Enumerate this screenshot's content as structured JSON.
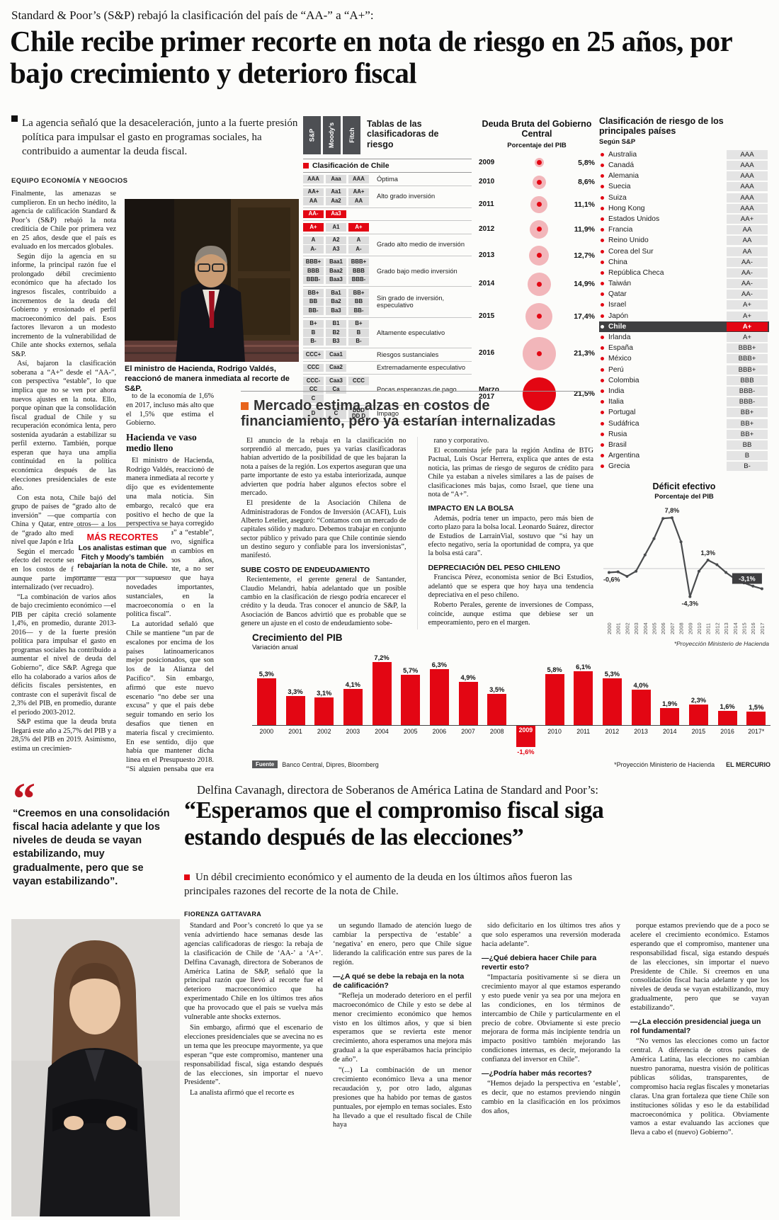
{
  "article": {
    "kicker": "Standard & Poor’s (S&P) rebajó la clasificación del país de “AA-” a “A+”:",
    "headline": "Chile recibe primer recorte en nota de riesgo en 25 años, por bajo crecimiento y deterioro fiscal",
    "lead": "La agencia señaló que la desaceleración, junto a la fuerte presión política para impulsar el gasto en programas sociales, ha contribuido a aumentar la deuda fiscal.",
    "byline": "EQUIPO ECONOMÍA Y NEGOCIOS",
    "col1": [
      "Finalmente, las amenazas se cumplieron. En un hecho inédito, la agencia de calificación Standard & Poor’s (S&P) rebajó la nota crediticia de Chile por primera vez en 25 años, desde que el país es evaluado en los mercados globales.",
      "Según dijo la agencia en su informe, la principal razón fue el prolongado débil crecimiento económico que ha afectado los ingresos fiscales, contribuido a incrementos de la deuda del Gobierno y erosionado el perfil macroeconómico del país. Esos factores llevaron a un modesto incremento de la vulnerabilidad de Chile ante shocks externos, señala S&P.",
      "Así, bajaron la clasificación soberana a “A+” desde el “AA-”, con perspectiva “estable”, lo que implica que no se ven por ahora nuevos ajustes en la nota. Ello, porque opinan que la consolidación fiscal gradual de Chile y su recuperación económica lenta, pero sostenida ayudarán a estabilizar su perfil externo. También, porque esperan que haya una amplia continuidad en la política económica después de las elecciones presidenciales de este año.",
      "Con esta nota, Chile bajó del grupo de países de “grado alto de inversión” —que compartía con China y Qatar, entre otros— a los de “grado alto medio”, al mismo nivel que Japón e Irlanda.",
      "Según el mercado, el principal efecto del recorte será un aumento en los costos de financiamiento, aunque parte importante está internalizado (ver recuadro).",
      "“La combinación de varios años de bajo crecimiento económico —el PIB per cápita creció solamente 1,4%, en promedio, durante 2013-2016— y de la fuerte presión política para impulsar el gasto en programas sociales ha contribuido a aumentar el nivel de deuda del Gobierno”, dice S&P. Agrega que ello ha colaborado a varios años de déficits fiscales persistentes, en contraste con el superávit fiscal de 2,3% del PIB, en promedio, durante el período 2003-2012.",
      "S&P estima que la deuda bruta llegará este año a 25,7% del PIB y a 28,5% del PIB en 2019. Asimismo, estima un crecimien-"
    ],
    "photo_caption": "El ministro de Hacienda, Rodrigo Valdés, reaccionó de manera inmediata al recorte de S&P.",
    "col2": [
      {
        "t": "p",
        "x": "to de la economía de 1,6% en 2017, incluso más alto que el 1,5% que estima el Gobierno."
      },
      {
        "t": "h",
        "x": "Hacienda ve vaso medio lleno"
      },
      {
        "t": "p",
        "x": "El ministro de Hacienda, Rodrigo Valdés, reaccionó de manera inmediata al recorte y dijo que es evidentemente una mala noticia. Sin embargo, recalcó que era positivo el hecho de que la perspectiva se haya corregido desde “negativa” a “estable”, lo que, sostuvo, significa “que no esperan cambios en los próximos años, aproximadamente, a no ser por supuesto que haya novedades importantes, sustanciales, en la macroeconomía o en la política fiscal”."
      },
      {
        "t": "p",
        "x": "La autoridad señaló que Chile se mantiene “un par de escalones por encima de los países latinoamericanos mejor posicionados, que son los de la Alianza del Pacífico”. Sin embargo, afirmó que este nuevo escenario “no debe ser una excusa” y que el país debe seguir tomando en serio los desafíos que tienen en materia fiscal y crecimiento. En ese sentido, dijo que había que mantener dicha línea en el Presupuesto 2018. “Si alguien pensaba que era tiempo de salirnos un poquito, de hacer un poco más de gasto, la verdad es que no existe ese espacio”."
      }
    ],
    "box": {
      "title": "MÁS RECORTES",
      "text": "Los analistas estiman que Fitch y Moody’s también rebajarían la nota de Chile."
    }
  },
  "ratings": {
    "title": "Tablas de las clasificadoras de riesgo",
    "legend": "Clasificación de Chile",
    "agencies": [
      "S&P",
      "Moody’s",
      "Fitch"
    ],
    "highlights": [
      [
        "AA-",
        0
      ],
      [
        "Aa3",
        1
      ],
      [
        "A+",
        0
      ],
      [
        "A+",
        2
      ]
    ],
    "groups": [
      {
        "rows": [
          [
            "AAA",
            "Aaa",
            "AAA"
          ]
        ],
        "desc": "Óptima"
      },
      {
        "rows": [
          [
            "AA+",
            "Aa1",
            "AA+"
          ],
          [
            "AA",
            "Aa2",
            "AA"
          ]
        ],
        "desc": "Alto grado inversión"
      },
      {
        "rows": [
          [
            "AA-",
            "Aa3",
            ""
          ]
        ],
        "desc": ""
      },
      {
        "rows": [
          [
            "A+",
            "A1",
            "A+"
          ]
        ],
        "desc": ""
      },
      {
        "rows": [
          [
            "A",
            "A2",
            "A"
          ],
          [
            "A-",
            "A3",
            "A-"
          ]
        ],
        "desc": "Grado alto medio de inversión"
      },
      {
        "rows": [
          [
            "BBB+",
            "Baa1",
            "BBB+"
          ],
          [
            "BBB",
            "Baa2",
            "BBB"
          ],
          [
            "BBB-",
            "Baa3",
            "BBB-"
          ]
        ],
        "desc": "Grado bajo medio inversión"
      },
      {
        "rows": [
          [
            "BB+",
            "Ba1",
            "BB+"
          ],
          [
            "BB",
            "Ba2",
            "BB"
          ],
          [
            "BB-",
            "Ba3",
            "BB-"
          ]
        ],
        "desc": "Sin grado de inversión, especulativo"
      },
      {
        "rows": [
          [
            "B+",
            "B1",
            "B+"
          ],
          [
            "B",
            "B2",
            "B"
          ],
          [
            "B-",
            "B3",
            "B-"
          ]
        ],
        "desc": "Altamente especulativo"
      },
      {
        "rows": [
          [
            "CCC+",
            "Caa1",
            ""
          ]
        ],
        "desc": "Riesgos sustanciales"
      },
      {
        "rows": [
          [
            "CCC",
            "Caa2",
            ""
          ]
        ],
        "desc": "Extremadamente especulativo"
      },
      {
        "rows": [
          [
            "CCC-",
            "Caa3",
            "CCC"
          ],
          [
            "CC",
            "Ca",
            ""
          ],
          [
            "C",
            "",
            ""
          ]
        ],
        "desc": "Pocas esperanzas de pago"
      },
      {
        "rows": [
          [
            "D",
            "C",
            "DDD DD D"
          ]
        ],
        "desc": "Impago"
      }
    ]
  },
  "countries": {
    "title": "Clasificación de riesgo de los principales países",
    "subtitle": "Según S&P",
    "items": [
      {
        "name": "Australia",
        "rating": "AAA"
      },
      {
        "name": "Canadá",
        "rating": "AAA"
      },
      {
        "name": "Alemania",
        "rating": "AAA"
      },
      {
        "name": "Suecia",
        "rating": "AAA"
      },
      {
        "name": "Suiza",
        "rating": "AAA"
      },
      {
        "name": "Hong Kong",
        "rating": "AAA"
      },
      {
        "name": "Estados Unidos",
        "rating": "AA+"
      },
      {
        "name": "Francia",
        "rating": "AA"
      },
      {
        "name": "Reino Unido",
        "rating": "AA"
      },
      {
        "name": "Corea del Sur",
        "rating": "AA"
      },
      {
        "name": "China",
        "rating": "AA-"
      },
      {
        "name": "República Checa",
        "rating": "AA-"
      },
      {
        "name": "Taiwán",
        "rating": "AA-"
      },
      {
        "name": "Qatar",
        "rating": "AA-"
      },
      {
        "name": "Israel",
        "rating": "A+"
      },
      {
        "name": "Japón",
        "rating": "A+"
      },
      {
        "name": "Chile",
        "rating": "A+",
        "hl": true
      },
      {
        "name": "Irlanda",
        "rating": "A+"
      },
      {
        "name": "España",
        "rating": "BBB+"
      },
      {
        "name": "México",
        "rating": "BBB+"
      },
      {
        "name": "Perú",
        "rating": "BBB+"
      },
      {
        "name": "Colombia",
        "rating": "BBB"
      },
      {
        "name": "India",
        "rating": "BBB-"
      },
      {
        "name": "Italia",
        "rating": "BBB-"
      },
      {
        "name": "Portugal",
        "rating": "BB+"
      },
      {
        "name": "Sudáfrica",
        "rating": "BB+"
      },
      {
        "name": "Rusia",
        "rating": "BB+"
      },
      {
        "name": "Brasil",
        "rating": "BB"
      },
      {
        "name": "Argentina",
        "rating": "B"
      },
      {
        "name": "Grecia",
        "rating": "B-"
      }
    ]
  },
  "market": {
    "title": "Mercado estima alzas en costos de financiamiento, pero ya estarían internalizadas",
    "col_a": [
      {
        "t": "p",
        "x": "El anuncio de la rebaja en la clasificación no sorprendió al mercado, pues ya varias clasificadoras habían advertido de la posibilidad de que les bajaran la nota a países de la región. Los expertos aseguran que una parte importante de esto ya estaba interiorizada, aunque advierten que podría haber algunos efectos sobre el mercado."
      },
      {
        "t": "p",
        "x": "El presidente de la Asociación Chilena de Administradoras de Fondos de Inversión (ACAFI), Luis Alberto Letelier, aseguró: “Contamos con un mercado de capitales sólido y maduro. Debemos trabajar en conjunto sector público y privado para que Chile continúe siendo un destino seguro y confiable para los inversionistas”, manifestó."
      },
      {
        "t": "h",
        "x": "SUBE COSTO DE ENDEUDAMIENTO"
      },
      {
        "t": "p",
        "x": "Recientemente, el gerente general de Santander, Claudio Melandri, había adelantado que un posible cambio en la clasificación de riesgo podría encarecer el crédito y la deuda. Tras conocer el anuncio de S&P, la Asociación de Bancos advirtió que es probable que se genere un ajuste en el costo de endeudamiento sobe-"
      }
    ],
    "col_b": [
      {
        "t": "p",
        "x": "rano y corporativo."
      },
      {
        "t": "p",
        "x": "El economista jefe para la región Andina de BTG Pactual, Luis Oscar Herrera, explica que antes de esta noticia, las primas de riesgo de seguros de crédito para Chile ya estaban a niveles similares a las de países de clasificaciones más bajas, como Israel, que tiene una nota de “A+”."
      },
      {
        "t": "h",
        "x": "IMPACTO EN LA BOLSA"
      },
      {
        "t": "p",
        "x": "Además, podría tener un impacto, pero más bien de corto plazo para la bolsa local. Leonardo Suárez, director de Estudios de LarrainVial, sostuvo que “si hay un efecto negativo, sería la oportunidad de compra, ya que la bolsa está cara”."
      },
      {
        "t": "h",
        "x": "DEPRECIACIÓN DEL PESO CHILENO"
      },
      {
        "t": "p",
        "x": "Francisca Pérez, economista senior de Bci Estudios, adelantó que se espera que hoy haya una tendencia depreciativa en el peso chileno."
      },
      {
        "t": "p",
        "x": "Roberto Perales, gerente de inversiones de Compass, coincide, aunque estima que debiese ser un empeoramiento, pero en el margen."
      }
    ]
  },
  "interview": {
    "kicker": "Delfina Cavanagh, directora de Soberanos de América Latina de Standard and Poor’s:",
    "headline": "“Esperamos que el compromiso fiscal siga estando después de las elecciones”",
    "dek": "Un débil crecimiento económico y el aumento de la deuda en los últimos años fueron las principales razones del recorte de la nota de Chile.",
    "byline": "FIORENZA GATTAVARA",
    "quote_mark": "“",
    "quote": "“Creemos en una consolidación fiscal hacia adelante y que los niveles de deuda se vayan estabilizando, muy gradualmente, pero que se vayan estabilizando”.",
    "cols": [
      [
        {
          "t": "p",
          "x": "Standard and Poor’s concretó lo que ya se venía advirtiendo hace semanas desde las agencias calificadoras de riesgo: la rebaja de la clasificación de Chile de ‘AA-’ a ‘A+’. Delfina Cavanagh, directora de Soberanos de América Latina de S&P, señaló que la principal razón que llevó al recorte fue el deterioro macroeconómico que ha experimentado Chile en los últimos tres años que ha provocado que el país se vuelva más vulnerable ante shocks externos."
        },
        {
          "t": "p",
          "x": "Sin embargo, afirmó que el escenario de elecciones presidenciales que se avecina no es un tema que les preocupe mayormente, ya que esperan “que este compromiso, mantener una responsabilidad fiscal, siga estando después de las elecciones, sin importar el nuevo Presidente”."
        },
        {
          "t": "p",
          "x": "La analista afirmó que el recorte es"
        }
      ],
      [
        {
          "t": "p",
          "x": "un segundo llamado de atención luego de cambiar la perspectiva de ‘estable’ a ‘negativa’ en enero, pero que Chile sigue liderando la calificación entre sus pares de la región."
        },
        {
          "t": "q",
          "x": "—¿A qué se debe la rebaja en la nota de calificación?"
        },
        {
          "t": "p",
          "x": "“Refleja un moderado deterioro en el perfil macroeconómico de Chile y esto se debe al menor crecimiento económico que hemos visto en los últimos años, y que si bien esperamos que se revierta este menor crecimiento, ahora esperamos una mejora más gradual a la que esperábamos hacia principio de año”."
        },
        {
          "t": "p",
          "x": "“(...) La combinación de un menor crecimiento económico lleva a una menor recaudación y, por otro lado, algunas presiones que ha habido por temas de gastos puntuales, por ejemplo en temas sociales. Esto ha llevado a que el resultado fiscal de Chile haya"
        }
      ],
      [
        {
          "t": "p",
          "x": "sido deficitario en los últimos tres años y que solo esperamos una reversión moderada hacia adelante”."
        },
        {
          "t": "q",
          "x": "—¿Qué debiera hacer Chile para revertir esto?"
        },
        {
          "t": "p",
          "x": "“Impactaría positivamente si se diera un crecimiento mayor al que estamos esperando y esto puede venir ya sea por una mejora en las condiciones, en los términos de intercambio de Chile y particularmente en el precio de cobre. Obviamente si este precio mejorara de forma más incipiente tendría un impacto positivo también mejorando las condiciones internas, es decir, mejorando la confianza del inversor en Chile”."
        },
        {
          "t": "q",
          "x": "—¿Podría haber más recortes?"
        },
        {
          "t": "p",
          "x": "“Hemos dejado la perspectiva en ‘estable’, es decir, que no estamos previendo ningún cambio en la clasificación en los próximos dos años,"
        }
      ],
      [
        {
          "t": "p",
          "x": "porque estamos previendo que de a poco se acelere el crecimiento económico. Estamos esperando que el compromiso, mantener una responsabilidad fiscal, siga estando después de las elecciones, sin importar el nuevo Presidente de Chile. Sí creemos en una consolidación fiscal hacia adelante y que los niveles de deuda se vayan estabilizando, muy gradualmente, pero que se vayan estabilizando”."
        },
        {
          "t": "q",
          "x": "—¿La elección presidencial juega un rol fundamental?"
        },
        {
          "t": "p",
          "x": "“No vemos las elecciones como un factor central. A diferencia de otros países de América Latina, las elecciones no cambian nuestro panorama, nuestra visión de políticas públicas sólidas, transparentes, de compromiso hacia reglas fiscales y monetarias claras. Una gran fortaleza que tiene Chile son instituciones sólidas y eso le da estabilidad macroeconómica y política. Obviamente vamos a estar evaluando las acciones que lleva a cabo el (nuevo) Gobierno”."
        }
      ]
    ]
  },
  "chart_data": [
    {
      "type": "bubble",
      "title": "Deuda Bruta del Gobierno Central",
      "subtitle": "Porcentaje del PIB",
      "categories": [
        "2009",
        "2010",
        "2011",
        "2012",
        "2013",
        "2014",
        "2015",
        "2016",
        "Marzo 2017"
      ],
      "values": [
        5.8,
        8.6,
        11.1,
        11.9,
        12.7,
        14.9,
        17.4,
        21.3,
        21.5
      ],
      "labels": [
        "5,8%",
        "8,6%",
        "11,1%",
        "11,9%",
        "12,7%",
        "14,9%",
        "17,4%",
        "21,3%",
        "21,5%"
      ]
    },
    {
      "type": "line",
      "title": "Déficit efectivo",
      "subtitle": "Porcentaje del PIB",
      "x": [
        "2000",
        "2001",
        "2002",
        "2003",
        "2004",
        "2005",
        "2006",
        "2007",
        "2008",
        "2009",
        "2010",
        "2011",
        "2012",
        "2013",
        "2014",
        "2015",
        "2016",
        "2017"
      ],
      "values": [
        -0.6,
        -0.5,
        -1.2,
        -0.4,
        2.1,
        4.6,
        7.7,
        7.8,
        4.1,
        -4.3,
        -0.4,
        1.3,
        0.6,
        -0.6,
        -1.6,
        -2.2,
        -2.7,
        -3.1
      ],
      "annotations": [
        {
          "i": 0,
          "label": "-0,6%",
          "pos": "below"
        },
        {
          "i": 7,
          "label": "7,8%",
          "pos": "above"
        },
        {
          "i": 9,
          "label": "-4,3%",
          "pos": "below"
        },
        {
          "i": 11,
          "label": "1,3%",
          "pos": "above"
        },
        {
          "i": 17,
          "label": "-3,1%",
          "pos": "box"
        }
      ],
      "footnote": "*Proyección Ministerio de Hacienda"
    },
    {
      "type": "bar",
      "title": "Crecimiento del PIB",
      "subtitle": "Variación anual",
      "categories": [
        "2000",
        "2001",
        "2002",
        "2003",
        "2004",
        "2005",
        "2006",
        "2007",
        "2008",
        "2009",
        "2010",
        "2011",
        "2012",
        "2013",
        "2014",
        "2015",
        "2016",
        "2017*"
      ],
      "values": [
        5.3,
        3.3,
        3.1,
        4.1,
        7.2,
        5.7,
        6.3,
        4.9,
        3.5,
        -1.6,
        5.8,
        6.1,
        5.3,
        4.0,
        1.9,
        2.3,
        1.6,
        1.5
      ],
      "labels": [
        "5,3%",
        "3,3%",
        "3,1%",
        "4,1%",
        "7,2%",
        "5,7%",
        "6,3%",
        "4,9%",
        "3,5%",
        "-1,6%",
        "5,8%",
        "6,1%",
        "5,3%",
        "4,0%",
        "1,9%",
        "2,3%",
        "1,6%",
        "1,5%"
      ],
      "source_label": "Fuente",
      "source": "Banco Central, Dipres, Bloomberg",
      "footnote": "*Proyección Ministerio de Hacienda",
      "credit": "EL MERCURIO"
    }
  ]
}
